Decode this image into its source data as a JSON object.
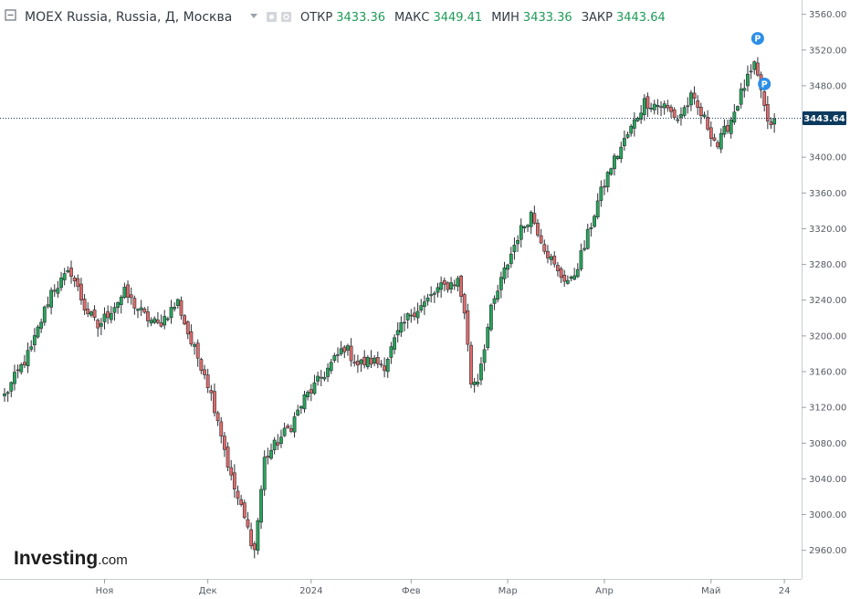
{
  "header": {
    "symbol": "MOEX Russia, Russia, Д, Москва",
    "open_label": "ОТКР",
    "open_value": "3433.36",
    "high_label": "МАКС",
    "high_value": "3449.41",
    "low_label": "МИН",
    "low_value": "3433.36",
    "close_label": "ЗАКР",
    "close_value": "3443.64"
  },
  "logo": {
    "main": "Investing",
    "suffix": ".com"
  },
  "markers": [
    {
      "label": "P",
      "candle": 226,
      "price": 3533
    },
    {
      "label": "P",
      "candle": 228,
      "price": 3482
    }
  ],
  "colors": {
    "up": "#26a65b",
    "down": "#e06a6a",
    "marker": "#2c8ee8",
    "price_tag": "#0b3a5e"
  },
  "chart_data": {
    "type": "candlestick",
    "title": "MOEX Russia, Russia, Д, Москва",
    "last_price": 3443.64,
    "last_price_label": "3443.64",
    "ylim": [
      2928,
      3576
    ],
    "y_ticks": [
      2960,
      3000,
      3040,
      3080,
      3120,
      3160,
      3200,
      3240,
      3280,
      3320,
      3360,
      3400,
      3440,
      3480,
      3520,
      3560
    ],
    "y_tick_labels": [
      "2960.00",
      "3000.00",
      "3040.00",
      "3080.00",
      "3120.00",
      "3160.00",
      "3200.00",
      "3240.00",
      "3280.00",
      "3320.00",
      "3360.00",
      "3400.00",
      "3440.00",
      "3480.00",
      "3520.00",
      "3560.00"
    ],
    "x_ticks": [
      {
        "label": "Ноя",
        "candle": 30
      },
      {
        "label": "Дек",
        "candle": 61
      },
      {
        "label": "2024",
        "candle": 92
      },
      {
        "label": "Фев",
        "candle": 122
      },
      {
        "label": "Мар",
        "candle": 151
      },
      {
        "label": "Апр",
        "candle": 180
      },
      {
        "label": "Май",
        "candle": 212
      },
      {
        "label": "24",
        "candle": 234
      }
    ],
    "waypoints": [
      [
        0,
        3133
      ],
      [
        8,
        3185
      ],
      [
        14,
        3250
      ],
      [
        20,
        3272
      ],
      [
        24,
        3232
      ],
      [
        28,
        3210
      ],
      [
        32,
        3230
      ],
      [
        36,
        3248
      ],
      [
        42,
        3222
      ],
      [
        46,
        3212
      ],
      [
        52,
        3238
      ],
      [
        56,
        3192
      ],
      [
        60,
        3160
      ],
      [
        64,
        3108
      ],
      [
        68,
        3040
      ],
      [
        72,
        2995
      ],
      [
        75,
        2960
      ],
      [
        78,
        3062
      ],
      [
        82,
        3082
      ],
      [
        86,
        3100
      ],
      [
        90,
        3130
      ],
      [
        94,
        3148
      ],
      [
        98,
        3168
      ],
      [
        102,
        3188
      ],
      [
        106,
        3168
      ],
      [
        110,
        3172
      ],
      [
        114,
        3168
      ],
      [
        118,
        3202
      ],
      [
        122,
        3226
      ],
      [
        126,
        3236
      ],
      [
        130,
        3252
      ],
      [
        136,
        3262
      ],
      [
        138,
        3228
      ],
      [
        140,
        3148
      ],
      [
        142,
        3152
      ],
      [
        146,
        3228
      ],
      [
        150,
        3272
      ],
      [
        154,
        3312
      ],
      [
        158,
        3337
      ],
      [
        162,
        3300
      ],
      [
        166,
        3270
      ],
      [
        170,
        3260
      ],
      [
        174,
        3300
      ],
      [
        178,
        3350
      ],
      [
        182,
        3390
      ],
      [
        188,
        3432
      ],
      [
        192,
        3462
      ],
      [
        198,
        3457
      ],
      [
        202,
        3443
      ],
      [
        206,
        3466
      ],
      [
        210,
        3442
      ],
      [
        214,
        3413
      ],
      [
        218,
        3443
      ],
      [
        222,
        3480
      ],
      [
        225,
        3500
      ],
      [
        227,
        3476
      ],
      [
        229,
        3435
      ],
      [
        231,
        3443
      ]
    ]
  }
}
